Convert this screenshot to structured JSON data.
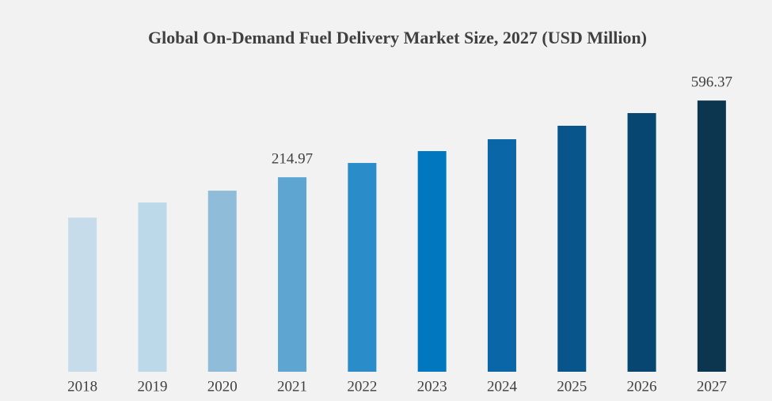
{
  "chart_data": {
    "type": "bar",
    "title": "Global On-Demand Fuel Delivery Market Size, 2027 (USD Million)",
    "categories": [
      "2018",
      "2019",
      "2020",
      "2021",
      "2022",
      "2023",
      "2024",
      "2025",
      "2026",
      "2027"
    ],
    "values": [
      14.5,
      89.3,
      148.2,
      214.97,
      286,
      345,
      404,
      471,
      534,
      596.37
    ],
    "value_labels": [
      null,
      null,
      null,
      "214.97",
      null,
      null,
      null,
      null,
      null,
      "596.37"
    ],
    "colors": [
      "#c6dcea",
      "#bcd9ea",
      "#8fbcd9",
      "#5ea6d1",
      "#2a8cc8",
      "#0077be",
      "#0a66a6",
      "#07558a",
      "#064670",
      "#0c3550"
    ],
    "ylim": [
      -752,
      703
    ]
  }
}
